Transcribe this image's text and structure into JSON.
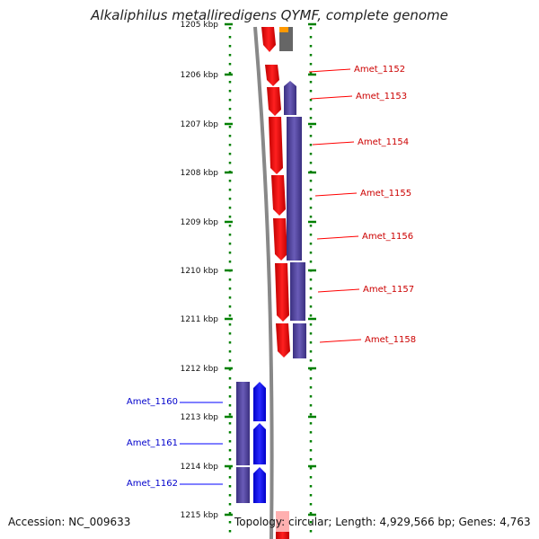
{
  "title": "Alkaliphilus metalliredigens QYMF, complete genome",
  "footer": {
    "accession": "Accession: NC_009633",
    "topology": "Topology: circular; Length: 4,929,566 bp; Genes: 4,763"
  },
  "colors": {
    "forward_gene": "#ff0000",
    "forward_gene_label": "#cc0000",
    "reverse_gene": "#4b3f96",
    "minus_gene": "#0000ff",
    "minus_gene_label": "#0000cc",
    "grey_gene": "#666666",
    "orange_gene": "#ff9900",
    "backbone": "#888888",
    "tick": "#008000"
  },
  "axis": {
    "ticks": [
      {
        "kbp": 1205,
        "label": "1205 kbp"
      },
      {
        "kbp": 1206,
        "label": "1206 kbp"
      },
      {
        "kbp": 1207,
        "label": "1207 kbp"
      },
      {
        "kbp": 1208,
        "label": "1208 kbp"
      },
      {
        "kbp": 1209,
        "label": "1209 kbp"
      },
      {
        "kbp": 1210,
        "label": "1210 kbp"
      },
      {
        "kbp": 1211,
        "label": "1211 kbp"
      },
      {
        "kbp": 1212,
        "label": "1212 kbp"
      },
      {
        "kbp": 1213,
        "label": "1213 kbp"
      },
      {
        "kbp": 1214,
        "label": "1214 kbp"
      },
      {
        "kbp": 1215,
        "label": "1215 kbp"
      }
    ]
  },
  "gene_labels_right": [
    "Amet_1152",
    "Amet_1153",
    "Amet_1154",
    "Amet_1155",
    "Amet_1156",
    "Amet_1157",
    "Amet_1158"
  ],
  "gene_labels_left": [
    "Amet_1160",
    "Amet_1161",
    "Amet_1162"
  ]
}
